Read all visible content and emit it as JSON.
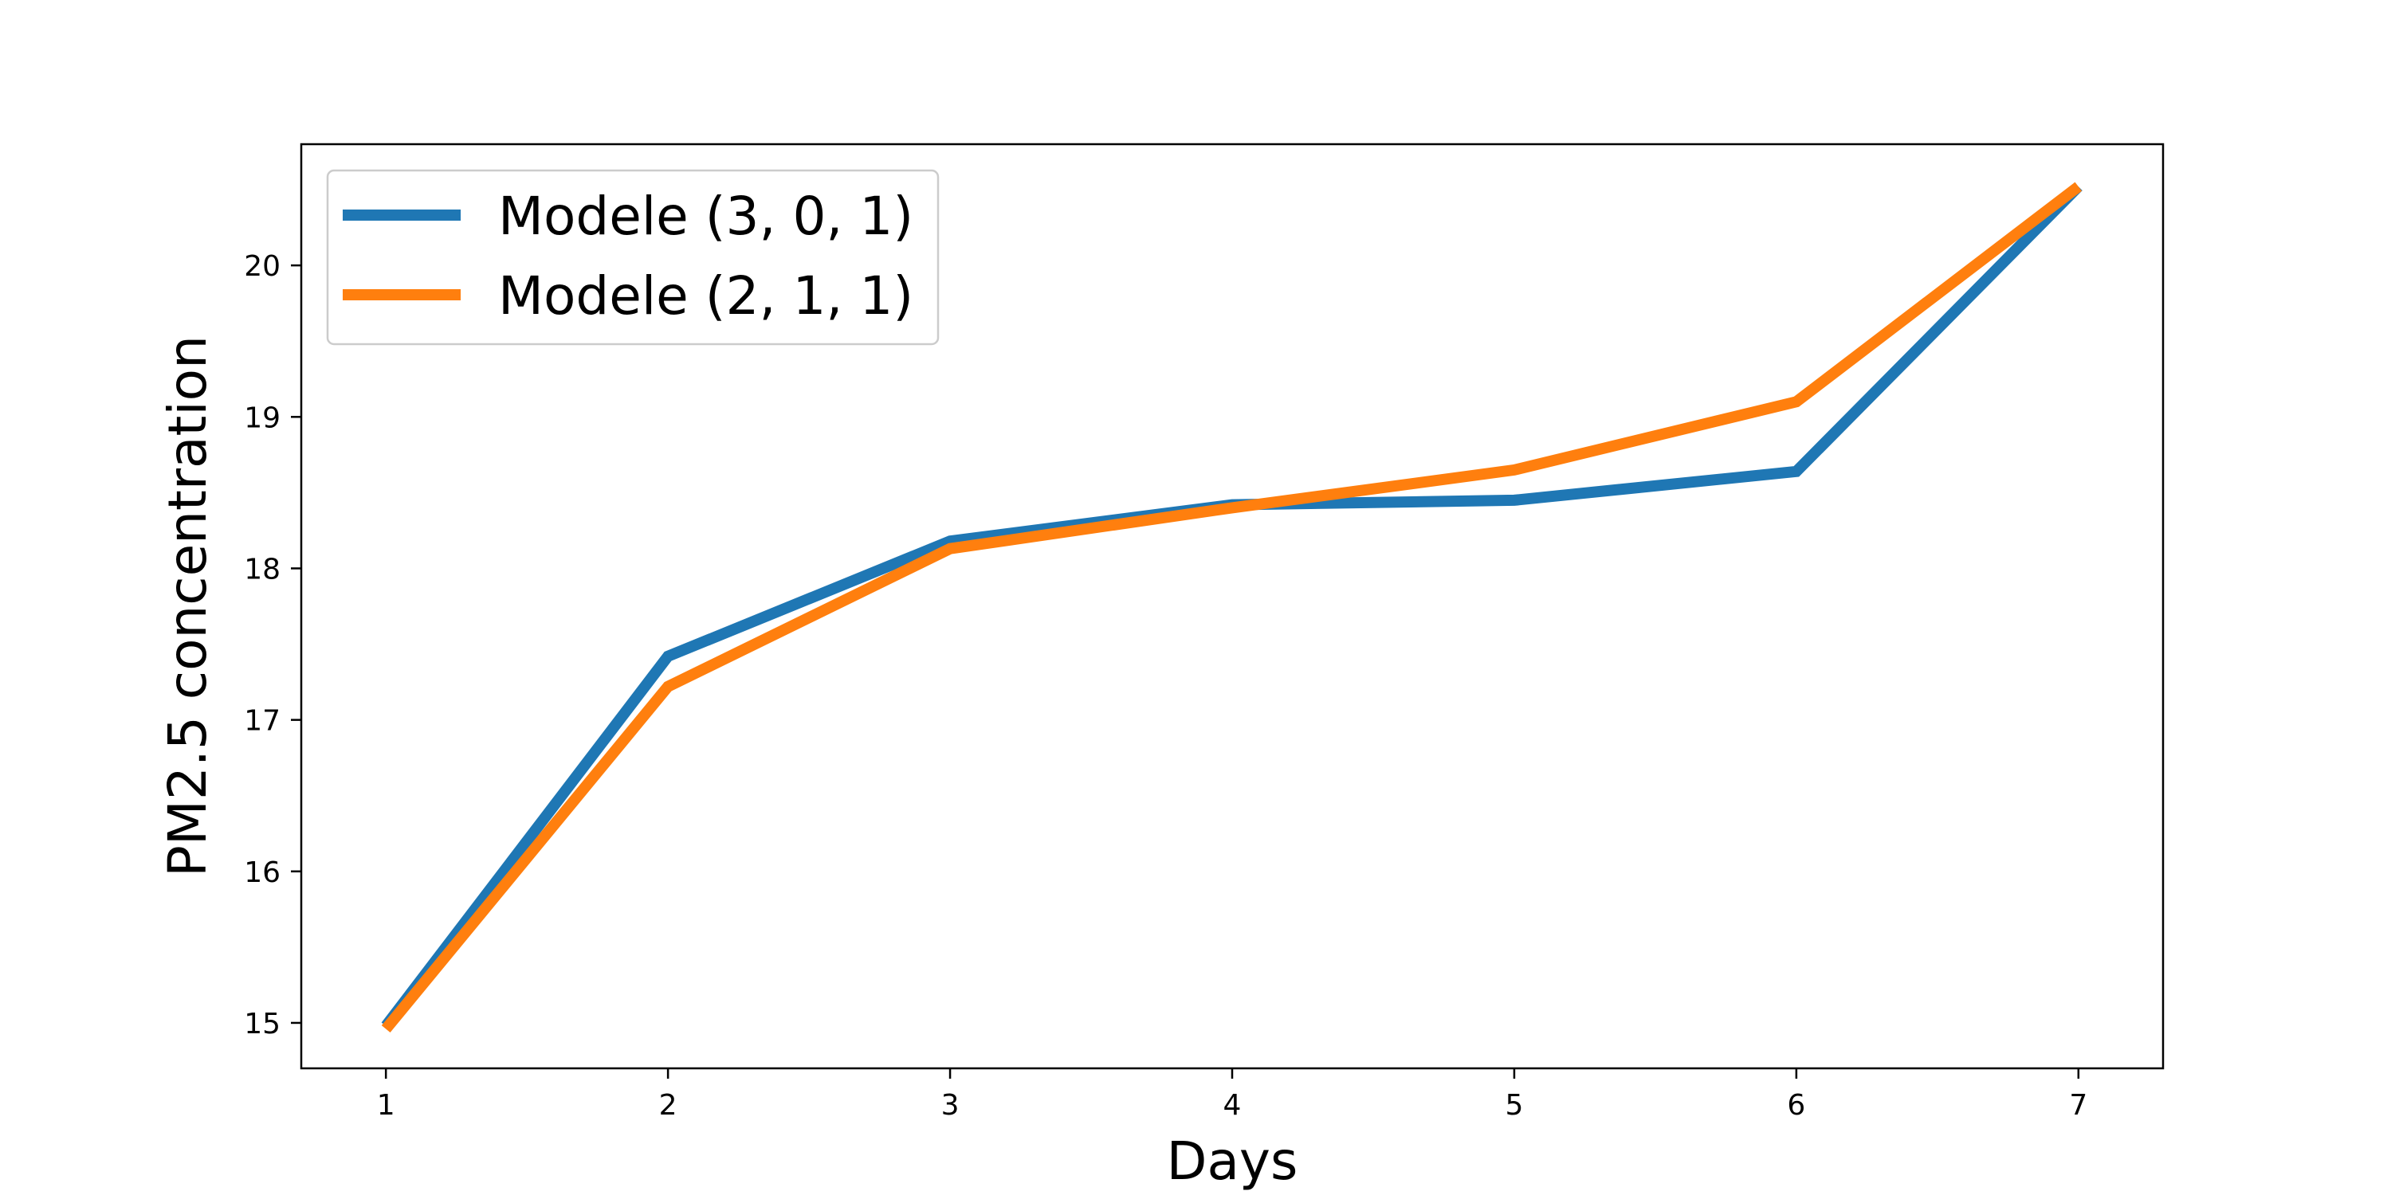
{
  "chart_data": {
    "type": "line",
    "title": "",
    "xlabel": "Days",
    "ylabel": "PM2.5 concentration",
    "x": [
      1,
      2,
      3,
      4,
      5,
      6,
      7
    ],
    "x_ticks": [
      "1",
      "2",
      "3",
      "4",
      "5",
      "6",
      "7"
    ],
    "y_ticks": [
      "15",
      "16",
      "17",
      "18",
      "19",
      "20"
    ],
    "xlim": [
      0.7,
      7.3
    ],
    "ylim": [
      14.7,
      20.8
    ],
    "grid": false,
    "legend_position": "top-left",
    "series": [
      {
        "name": "Modele (3, 0, 1)",
        "color": "#1f77b4",
        "values": [
          14.98,
          17.42,
          18.18,
          18.42,
          18.45,
          18.64,
          20.52
        ]
      },
      {
        "name": "Modele (2, 1, 1)",
        "color": "#ff7f0e",
        "values": [
          14.96,
          17.22,
          18.13,
          18.4,
          18.65,
          19.1,
          20.52
        ]
      }
    ]
  }
}
